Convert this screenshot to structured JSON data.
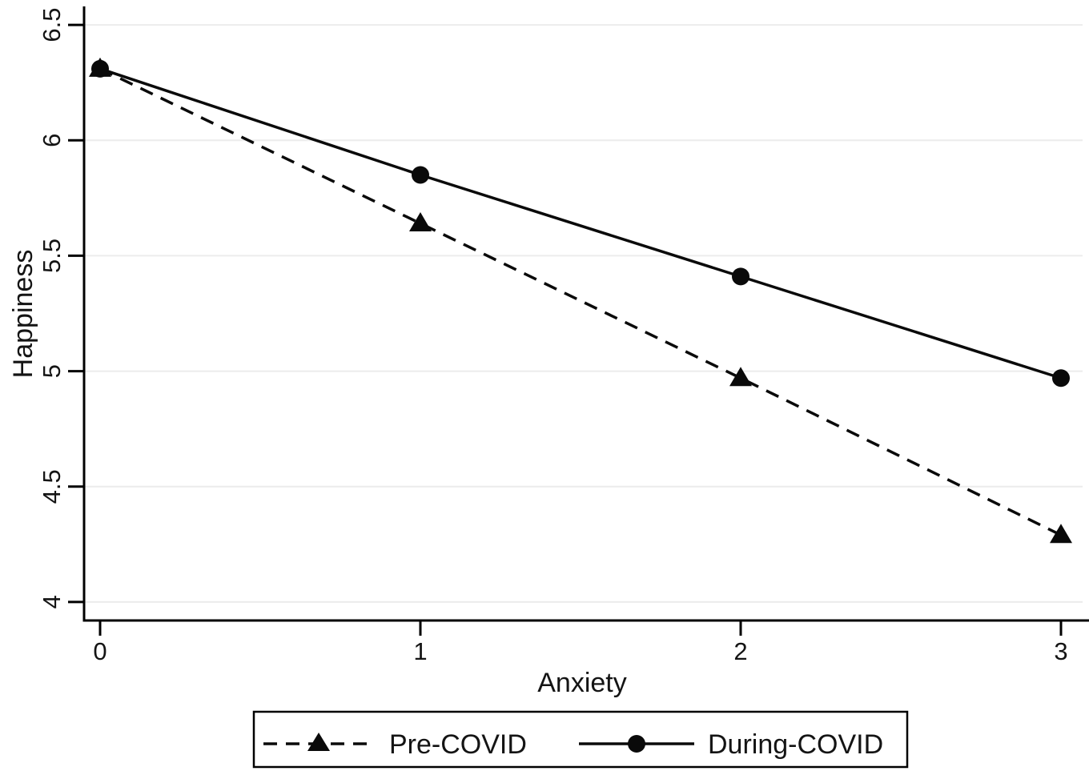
{
  "figure": {
    "background_color": "#ffffff",
    "axis_color": "#000000",
    "text_color": "#141414"
  },
  "chart_data": {
    "type": "line",
    "title": "",
    "xlabel": "Anxiety",
    "ylabel": "Happiness",
    "x": [
      0,
      1,
      2,
      3
    ],
    "series": [
      {
        "name": "Pre-COVID",
        "values": [
          6.31,
          5.64,
          4.97,
          4.29
        ],
        "line_style": "dashed",
        "marker": "triangle",
        "color": "#0a0a0a"
      },
      {
        "name": "During-COVID",
        "values": [
          6.31,
          5.85,
          5.41,
          4.97
        ],
        "line_style": "solid",
        "marker": "circle",
        "color": "#0a0a0a"
      }
    ],
    "xticks": [
      0,
      1,
      2,
      3
    ],
    "yticks": [
      4,
      4.5,
      5,
      5.5,
      6,
      6.5
    ],
    "xlim": [
      -0.05,
      3.0625
    ],
    "ylim": [
      3.92,
      6.58
    ],
    "grid": "horizontal-only",
    "gridline_color": "#ececec",
    "legend_position": "bottom-center",
    "legend_border": true,
    "ytick_label_rotation": -90
  }
}
